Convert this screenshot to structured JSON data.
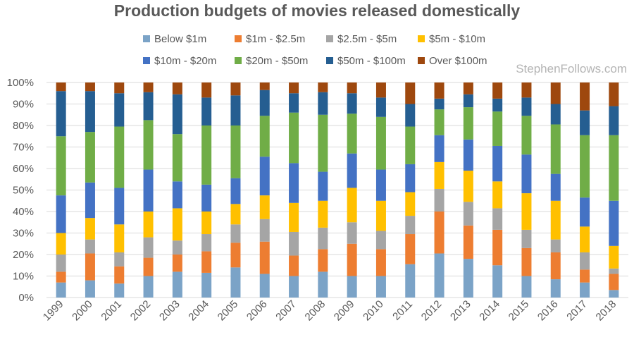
{
  "chart_data": {
    "type": "bar",
    "stacked": "percent",
    "title": "Production budgets of movies released domestically",
    "watermark": "StephenFollows.com",
    "categories": [
      "1999",
      "2000",
      "2001",
      "2002",
      "2003",
      "2004",
      "2005",
      "2006",
      "2007",
      "2008",
      "2009",
      "2010",
      "2011",
      "2012",
      "2013",
      "2014",
      "2015",
      "2016",
      "2017",
      "2018"
    ],
    "ylim": [
      0,
      100
    ],
    "yticks": [
      "0%",
      "10%",
      "20%",
      "30%",
      "40%",
      "50%",
      "60%",
      "70%",
      "80%",
      "90%",
      "100%"
    ],
    "grid": true,
    "legend_position": "top",
    "series": [
      {
        "name": "Below $1m",
        "color": "#7ba3c7",
        "values": [
          7,
          8,
          6.5,
          10,
          12,
          11.5,
          14,
          11,
          10,
          12,
          10,
          10,
          15.5,
          20.5,
          18,
          15,
          10,
          8.5,
          7,
          3.5
        ]
      },
      {
        "name": "$1m - $2.5m",
        "color": "#ed7d31",
        "values": [
          5,
          12.5,
          8,
          8.5,
          8,
          10,
          11.5,
          15,
          9.5,
          10.5,
          15,
          12.5,
          14,
          19.5,
          15.5,
          16.5,
          13,
          12.5,
          6,
          7.5
        ]
      },
      {
        "name": "$2.5m - $5m",
        "color": "#a5a5a5",
        "values": [
          8,
          6.5,
          6.5,
          9.5,
          6.5,
          8,
          8.5,
          10.5,
          11,
          10,
          10,
          8.5,
          8.5,
          10.5,
          11,
          10,
          8.5,
          6,
          8,
          2.5
        ]
      },
      {
        "name": "$5m - $10m",
        "color": "#ffc000",
        "values": [
          10,
          10,
          13,
          12,
          15,
          10.5,
          9.5,
          11,
          13.5,
          12.5,
          16,
          14,
          11,
          12.5,
          14.5,
          12.5,
          17,
          18,
          12,
          10.5
        ]
      },
      {
        "name": "$10m - $20m",
        "color": "#4472c4",
        "values": [
          17.5,
          16.5,
          17,
          19.5,
          12.5,
          12.5,
          12,
          18,
          18.5,
          13.5,
          16,
          14.5,
          13,
          12.5,
          14.5,
          16.5,
          18,
          12.5,
          13.5,
          21
        ]
      },
      {
        "name": "$20m - $50m",
        "color": "#70ad47",
        "values": [
          27.5,
          23.5,
          28.5,
          23,
          22,
          27.5,
          24.5,
          19,
          23.5,
          26.5,
          18.5,
          24.5,
          17.5,
          12,
          15,
          16,
          18,
          23,
          29,
          30.5
        ]
      },
      {
        "name": "$50m - $100m",
        "color": "#255e91",
        "values": [
          21,
          19,
          15.5,
          13,
          18.5,
          13,
          14,
          12,
          9,
          10.5,
          9.5,
          9,
          10.5,
          5,
          6,
          6,
          8.5,
          9.5,
          11.5,
          13.5
        ]
      },
      {
        "name": "Over $100m",
        "color": "#9e480e",
        "values": [
          4,
          4,
          5,
          4.5,
          5.5,
          7,
          6,
          3.5,
          5,
          4.5,
          5,
          7,
          10,
          7.5,
          5.5,
          7.5,
          7,
          10,
          13,
          11
        ]
      }
    ]
  }
}
